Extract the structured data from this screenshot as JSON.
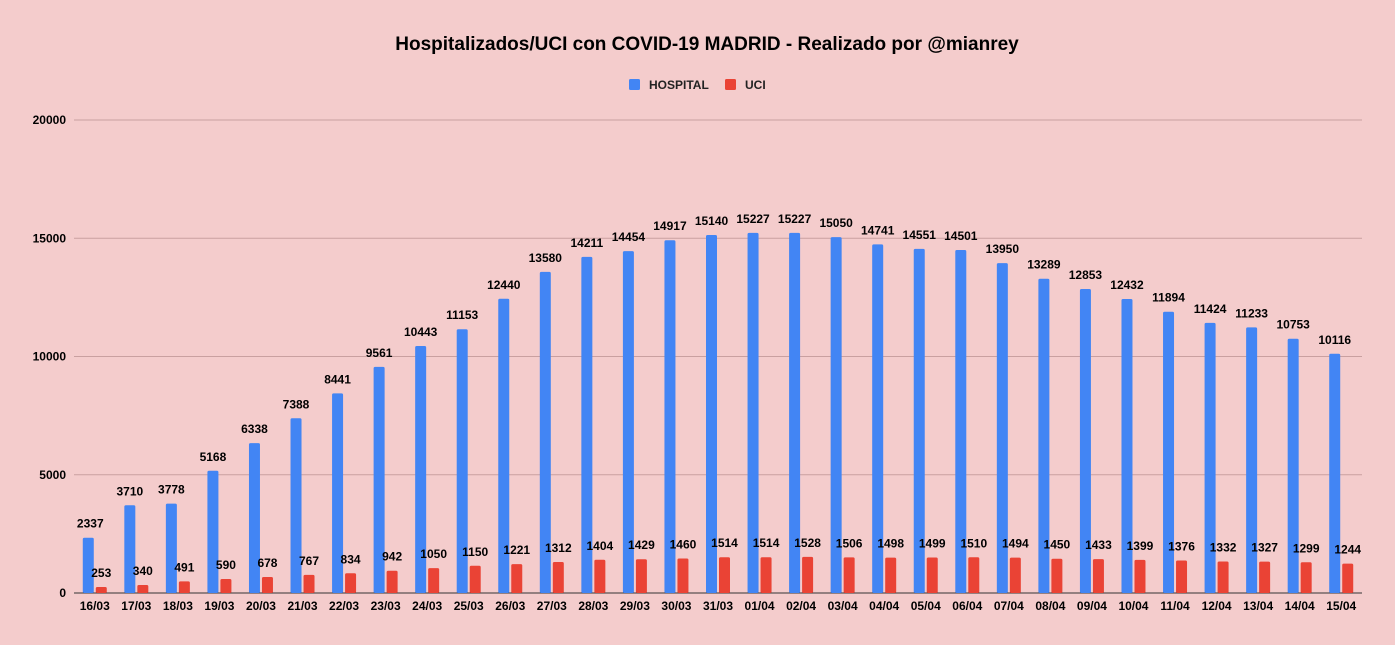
{
  "chart_data": {
    "type": "bar",
    "title": "Hospitalizados/UCI con COVID-19 MADRID - Realizado por @mianrey",
    "legend_position": "top-center",
    "grid": true,
    "ylim": [
      0,
      20000
    ],
    "yticks": [
      0,
      5000,
      10000,
      15000,
      20000
    ],
    "categories": [
      "16/03",
      "17/03",
      "18/03",
      "19/03",
      "20/03",
      "21/03",
      "22/03",
      "23/03",
      "24/03",
      "25/03",
      "26/03",
      "27/03",
      "28/03",
      "29/03",
      "30/03",
      "31/03",
      "01/04",
      "02/04",
      "03/04",
      "04/04",
      "05/04",
      "06/04",
      "07/04",
      "08/04",
      "09/04",
      "10/04",
      "11/04",
      "12/04",
      "13/04",
      "14/04",
      "15/04"
    ],
    "series": [
      {
        "name": "HOSPITAL",
        "color": "#4285f4",
        "values": [
          2337,
          3710,
          3778,
          5168,
          6338,
          7388,
          8441,
          9561,
          10443,
          11153,
          12440,
          13580,
          14211,
          14454,
          14917,
          15140,
          15227,
          15227,
          15050,
          14741,
          14551,
          14501,
          13950,
          13289,
          12853,
          12432,
          11894,
          11424,
          11233,
          10753,
          10116
        ]
      },
      {
        "name": "UCI",
        "color": "#ea4335",
        "values": [
          253,
          340,
          491,
          590,
          678,
          767,
          834,
          942,
          1050,
          1150,
          1221,
          1312,
          1404,
          1429,
          1460,
          1514,
          1514,
          1528,
          1506,
          1498,
          1499,
          1510,
          1494,
          1450,
          1433,
          1399,
          1376,
          1332,
          1327,
          1299,
          1244
        ]
      }
    ]
  }
}
